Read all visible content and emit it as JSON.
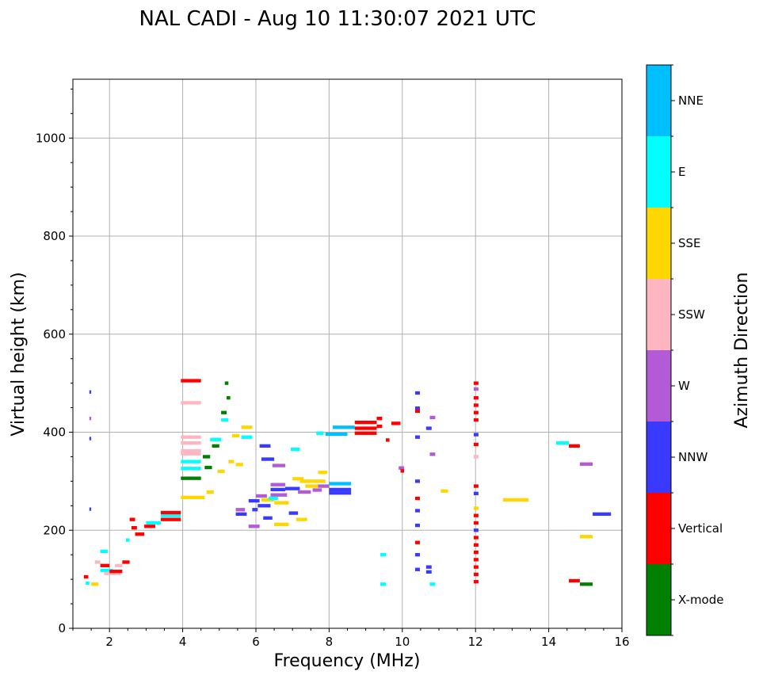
{
  "chart_data": {
    "type": "scatter",
    "title": "NAL CADI - Aug 10 11:30:07 2021 UTC",
    "xlabel": "Frequency (MHz)",
    "ylabel": "Virtual height (km)",
    "xlim": [
      1,
      16
    ],
    "ylim": [
      0,
      1120
    ],
    "xticks": [
      2,
      4,
      6,
      8,
      10,
      12,
      14,
      16
    ],
    "yticks": [
      0,
      200,
      400,
      600,
      800,
      1000
    ],
    "grid": true,
    "colorbar": {
      "title": "Azimuth Direction",
      "categories": [
        "X-mode",
        "Vertical",
        "NNW",
        "W",
        "SSW",
        "SSE",
        "E",
        "NNE"
      ],
      "colors": [
        "#008000",
        "#ff0000",
        "#3a3aff",
        "#b35ad6",
        "#ffb6c1",
        "#ffd700",
        "#00ffff",
        "#00bfff"
      ]
    },
    "echoes": [
      {
        "f": 1.3,
        "f2": 1.42,
        "h": 105,
        "c": "Vertical"
      },
      {
        "f": 1.35,
        "f2": 1.45,
        "h": 92,
        "c": "E"
      },
      {
        "f": 1.45,
        "f2": 1.5,
        "h": 482,
        "c": "NNW"
      },
      {
        "f": 1.45,
        "f2": 1.5,
        "h": 428,
        "c": "W"
      },
      {
        "f": 1.45,
        "f2": 1.5,
        "h": 387,
        "c": "NNW"
      },
      {
        "f": 1.45,
        "f2": 1.5,
        "h": 243,
        "c": "NNW"
      },
      {
        "f": 1.5,
        "f2": 1.7,
        "h": 90,
        "c": "SSE"
      },
      {
        "f": 1.6,
        "f2": 1.75,
        "h": 135,
        "c": "SSW"
      },
      {
        "f": 1.75,
        "f2": 1.95,
        "h": 157,
        "c": "E"
      },
      {
        "f": 1.75,
        "f2": 2.0,
        "h": 128,
        "c": "Vertical"
      },
      {
        "f": 1.75,
        "f2": 2.1,
        "h": 118,
        "c": "E"
      },
      {
        "f": 1.85,
        "f2": 2.3,
        "h": 112,
        "c": "SSW"
      },
      {
        "f": 2.0,
        "f2": 2.35,
        "h": 116,
        "c": "Vertical"
      },
      {
        "f": 2.15,
        "f2": 2.35,
        "h": 128,
        "c": "SSW"
      },
      {
        "f": 2.35,
        "f2": 2.55,
        "h": 135,
        "c": "Vertical"
      },
      {
        "f": 2.45,
        "f2": 2.55,
        "h": 180,
        "c": "E"
      },
      {
        "f": 2.55,
        "f2": 2.7,
        "h": 222,
        "c": "Vertical"
      },
      {
        "f": 2.6,
        "f2": 2.75,
        "h": 205,
        "c": "Vertical"
      },
      {
        "f": 2.7,
        "f2": 2.95,
        "h": 192,
        "c": "Vertical"
      },
      {
        "f": 2.95,
        "f2": 3.25,
        "h": 208,
        "c": "Vertical"
      },
      {
        "f": 3.0,
        "f2": 3.4,
        "h": 215,
        "c": "E"
      },
      {
        "f": 3.4,
        "f2": 3.95,
        "h": 222,
        "c": "Vertical"
      },
      {
        "f": 3.4,
        "f2": 3.95,
        "h": 230,
        "c": "E"
      },
      {
        "f": 3.4,
        "f2": 3.95,
        "h": 236,
        "c": "Vertical"
      },
      {
        "f": 3.95,
        "f2": 4.5,
        "h": 505,
        "c": "Vertical"
      },
      {
        "f": 3.95,
        "f2": 4.5,
        "h": 460,
        "c": "SSW"
      },
      {
        "f": 3.95,
        "f2": 4.5,
        "h": 390,
        "c": "SSW"
      },
      {
        "f": 3.95,
        "f2": 4.5,
        "h": 378,
        "c": "SSW"
      },
      {
        "f": 3.95,
        "f2": 4.5,
        "h": 362,
        "c": "SSW"
      },
      {
        "f": 3.95,
        "f2": 4.5,
        "h": 356,
        "c": "SSW"
      },
      {
        "f": 3.95,
        "f2": 4.5,
        "h": 340,
        "c": "E"
      },
      {
        "f": 3.95,
        "f2": 4.5,
        "h": 326,
        "c": "E"
      },
      {
        "f": 3.95,
        "f2": 4.5,
        "h": 306,
        "c": "X-mode"
      },
      {
        "f": 3.95,
        "f2": 4.6,
        "h": 267,
        "c": "SSE"
      },
      {
        "f": 4.55,
        "f2": 4.75,
        "h": 350,
        "c": "X-mode"
      },
      {
        "f": 4.6,
        "f2": 4.8,
        "h": 328,
        "c": "X-mode"
      },
      {
        "f": 4.65,
        "f2": 4.85,
        "h": 278,
        "c": "SSE"
      },
      {
        "f": 4.75,
        "f2": 5.05,
        "h": 385,
        "c": "E"
      },
      {
        "f": 4.8,
        "f2": 5.0,
        "h": 372,
        "c": "X-mode"
      },
      {
        "f": 4.95,
        "f2": 5.15,
        "h": 320,
        "c": "SSE"
      },
      {
        "f": 5.05,
        "f2": 5.2,
        "h": 440,
        "c": "X-mode"
      },
      {
        "f": 5.05,
        "f2": 5.25,
        "h": 425,
        "c": "E"
      },
      {
        "f": 5.15,
        "f2": 5.25,
        "h": 500,
        "c": "X-mode"
      },
      {
        "f": 5.2,
        "f2": 5.3,
        "h": 470,
        "c": "X-mode"
      },
      {
        "f": 5.25,
        "f2": 5.4,
        "h": 340,
        "c": "SSE"
      },
      {
        "f": 5.35,
        "f2": 5.55,
        "h": 393,
        "c": "SSE"
      },
      {
        "f": 5.45,
        "f2": 5.65,
        "h": 334,
        "c": "SSE"
      },
      {
        "f": 5.6,
        "f2": 5.9,
        "h": 410,
        "c": "SSE"
      },
      {
        "f": 5.6,
        "f2": 5.9,
        "h": 390,
        "c": "E"
      },
      {
        "f": 5.45,
        "f2": 5.7,
        "h": 242,
        "c": "W"
      },
      {
        "f": 5.45,
        "f2": 5.75,
        "h": 233,
        "c": "NNW"
      },
      {
        "f": 5.8,
        "f2": 6.1,
        "h": 260,
        "c": "NNW"
      },
      {
        "f": 5.8,
        "f2": 6.1,
        "h": 208,
        "c": "W"
      },
      {
        "f": 5.9,
        "f2": 6.05,
        "h": 242,
        "c": "NNW"
      },
      {
        "f": 6.0,
        "f2": 6.3,
        "h": 270,
        "c": "W"
      },
      {
        "f": 6.05,
        "f2": 6.4,
        "h": 250,
        "c": "NNW"
      },
      {
        "f": 6.1,
        "f2": 6.4,
        "h": 372,
        "c": "NNW"
      },
      {
        "f": 6.15,
        "f2": 6.5,
        "h": 345,
        "c": "NNW"
      },
      {
        "f": 6.15,
        "f2": 6.5,
        "h": 262,
        "c": "SSE"
      },
      {
        "f": 6.2,
        "f2": 6.45,
        "h": 225,
        "c": "NNW"
      },
      {
        "f": 6.35,
        "f2": 6.6,
        "h": 265,
        "c": "E"
      },
      {
        "f": 6.4,
        "f2": 6.8,
        "h": 293,
        "c": "W"
      },
      {
        "f": 6.4,
        "f2": 6.8,
        "h": 283,
        "c": "NNW"
      },
      {
        "f": 6.4,
        "f2": 6.85,
        "h": 272,
        "c": "W"
      },
      {
        "f": 6.45,
        "f2": 6.8,
        "h": 332,
        "c": "W"
      },
      {
        "f": 6.5,
        "f2": 6.9,
        "h": 256,
        "c": "SSE"
      },
      {
        "f": 6.5,
        "f2": 6.9,
        "h": 212,
        "c": "SSE"
      },
      {
        "f": 6.8,
        "f2": 7.2,
        "h": 285,
        "c": "NNW"
      },
      {
        "f": 6.9,
        "f2": 7.15,
        "h": 235,
        "c": "NNW"
      },
      {
        "f": 6.95,
        "f2": 7.2,
        "h": 365,
        "c": "E"
      },
      {
        "f": 7.0,
        "f2": 7.3,
        "h": 305,
        "c": "SSE"
      },
      {
        "f": 7.1,
        "f2": 7.4,
        "h": 222,
        "c": "SSE"
      },
      {
        "f": 7.15,
        "f2": 7.5,
        "h": 278,
        "c": "W"
      },
      {
        "f": 7.2,
        "f2": 7.6,
        "h": 300,
        "c": "SSE"
      },
      {
        "f": 7.35,
        "f2": 7.7,
        "h": 290,
        "c": "SSE"
      },
      {
        "f": 7.55,
        "f2": 7.8,
        "h": 282,
        "c": "W"
      },
      {
        "f": 7.6,
        "f2": 7.9,
        "h": 300,
        "c": "SSE"
      },
      {
        "f": 7.7,
        "f2": 7.95,
        "h": 318,
        "c": "SSE"
      },
      {
        "f": 7.7,
        "f2": 8.0,
        "h": 290,
        "c": "W"
      },
      {
        "f": 7.65,
        "f2": 7.85,
        "h": 398,
        "c": "E"
      },
      {
        "f": 8.0,
        "f2": 8.6,
        "h": 295,
        "c": "NNE"
      },
      {
        "f": 8.0,
        "f2": 8.6,
        "h": 283,
        "c": "NNW"
      },
      {
        "f": 8.0,
        "f2": 8.6,
        "h": 276,
        "c": "NNW"
      },
      {
        "f": 8.1,
        "f2": 8.7,
        "h": 410,
        "c": "NNE"
      },
      {
        "f": 7.9,
        "f2": 8.5,
        "h": 396,
        "c": "NNE"
      },
      {
        "f": 8.7,
        "f2": 9.3,
        "h": 420,
        "c": "Vertical"
      },
      {
        "f": 8.7,
        "f2": 9.3,
        "h": 408,
        "c": "Vertical"
      },
      {
        "f": 8.7,
        "f2": 9.3,
        "h": 398,
        "c": "Vertical"
      },
      {
        "f": 9.3,
        "f2": 9.45,
        "h": 428,
        "c": "Vertical"
      },
      {
        "f": 9.3,
        "f2": 9.45,
        "h": 412,
        "c": "Vertical"
      },
      {
        "f": 9.55,
        "f2": 9.65,
        "h": 384,
        "c": "Vertical"
      },
      {
        "f": 9.7,
        "f2": 9.95,
        "h": 418,
        "c": "Vertical"
      },
      {
        "f": 9.9,
        "f2": 10.05,
        "h": 327,
        "c": "W"
      },
      {
        "f": 9.95,
        "f2": 10.05,
        "h": 321,
        "c": "Vertical"
      },
      {
        "f": 9.4,
        "f2": 9.55,
        "h": 150,
        "c": "E"
      },
      {
        "f": 9.4,
        "f2": 9.55,
        "h": 90,
        "c": "E"
      },
      {
        "f": 10.35,
        "f2": 10.48,
        "h": 480,
        "c": "NNW"
      },
      {
        "f": 10.35,
        "f2": 10.48,
        "h": 449,
        "c": "NNW"
      },
      {
        "f": 10.35,
        "f2": 10.48,
        "h": 443,
        "c": "Vertical"
      },
      {
        "f": 10.35,
        "f2": 10.48,
        "h": 390,
        "c": "NNW"
      },
      {
        "f": 10.35,
        "f2": 10.48,
        "h": 300,
        "c": "NNW"
      },
      {
        "f": 10.35,
        "f2": 10.48,
        "h": 265,
        "c": "Vertical"
      },
      {
        "f": 10.35,
        "f2": 10.48,
        "h": 240,
        "c": "NNW"
      },
      {
        "f": 10.35,
        "f2": 10.48,
        "h": 210,
        "c": "NNW"
      },
      {
        "f": 10.35,
        "f2": 10.48,
        "h": 175,
        "c": "Vertical"
      },
      {
        "f": 10.35,
        "f2": 10.48,
        "h": 150,
        "c": "NNW"
      },
      {
        "f": 10.35,
        "f2": 10.48,
        "h": 120,
        "c": "NNW"
      },
      {
        "f": 10.65,
        "f2": 10.8,
        "h": 408,
        "c": "NNW"
      },
      {
        "f": 10.65,
        "f2": 10.8,
        "h": 125,
        "c": "NNW"
      },
      {
        "f": 10.65,
        "f2": 10.8,
        "h": 115,
        "c": "NNW"
      },
      {
        "f": 10.75,
        "f2": 10.9,
        "h": 430,
        "c": "W"
      },
      {
        "f": 10.75,
        "f2": 10.9,
        "h": 355,
        "c": "W"
      },
      {
        "f": 10.75,
        "f2": 10.9,
        "h": 90,
        "c": "E"
      },
      {
        "f": 11.05,
        "f2": 11.25,
        "h": 280,
        "c": "SSE"
      },
      {
        "f": 11.95,
        "f2": 12.08,
        "h": 500,
        "c": "Vertical"
      },
      {
        "f": 11.95,
        "f2": 12.08,
        "h": 488,
        "c": "W"
      },
      {
        "f": 11.95,
        "f2": 12.08,
        "h": 470,
        "c": "Vertical"
      },
      {
        "f": 11.95,
        "f2": 12.08,
        "h": 455,
        "c": "Vertical"
      },
      {
        "f": 11.95,
        "f2": 12.08,
        "h": 440,
        "c": "Vertical"
      },
      {
        "f": 11.95,
        "f2": 12.08,
        "h": 425,
        "c": "Vertical"
      },
      {
        "f": 11.95,
        "f2": 12.08,
        "h": 395,
        "c": "NNW"
      },
      {
        "f": 11.95,
        "f2": 12.08,
        "h": 375,
        "c": "Vertical"
      },
      {
        "f": 11.95,
        "f2": 12.08,
        "h": 350,
        "c": "SSW"
      },
      {
        "f": 11.95,
        "f2": 12.08,
        "h": 290,
        "c": "Vertical"
      },
      {
        "f": 11.95,
        "f2": 12.08,
        "h": 275,
        "c": "NNW"
      },
      {
        "f": 11.95,
        "f2": 12.08,
        "h": 245,
        "c": "SSE"
      },
      {
        "f": 11.95,
        "f2": 12.08,
        "h": 230,
        "c": "Vertical"
      },
      {
        "f": 11.95,
        "f2": 12.08,
        "h": 215,
        "c": "Vertical"
      },
      {
        "f": 11.95,
        "f2": 12.08,
        "h": 200,
        "c": "NNW"
      },
      {
        "f": 11.95,
        "f2": 12.08,
        "h": 185,
        "c": "Vertical"
      },
      {
        "f": 11.95,
        "f2": 12.08,
        "h": 170,
        "c": "Vertical"
      },
      {
        "f": 11.95,
        "f2": 12.08,
        "h": 155,
        "c": "Vertical"
      },
      {
        "f": 11.95,
        "f2": 12.08,
        "h": 140,
        "c": "Vertical"
      },
      {
        "f": 11.95,
        "f2": 12.08,
        "h": 125,
        "c": "Vertical"
      },
      {
        "f": 11.95,
        "f2": 12.08,
        "h": 110,
        "c": "Vertical"
      },
      {
        "f": 11.95,
        "f2": 12.08,
        "h": 95,
        "c": "Vertical"
      },
      {
        "f": 12.75,
        "f2": 13.45,
        "h": 262,
        "c": "SSE"
      },
      {
        "f": 14.2,
        "f2": 14.55,
        "h": 378,
        "c": "E"
      },
      {
        "f": 14.55,
        "f2": 14.85,
        "h": 372,
        "c": "Vertical"
      },
      {
        "f": 14.85,
        "f2": 15.2,
        "h": 335,
        "c": "W"
      },
      {
        "f": 15.2,
        "f2": 15.7,
        "h": 233,
        "c": "NNW"
      },
      {
        "f": 14.85,
        "f2": 15.2,
        "h": 187,
        "c": "SSE"
      },
      {
        "f": 14.55,
        "f2": 14.85,
        "h": 97,
        "c": "Vertical"
      },
      {
        "f": 14.85,
        "f2": 15.2,
        "h": 90,
        "c": "X-mode"
      }
    ]
  }
}
